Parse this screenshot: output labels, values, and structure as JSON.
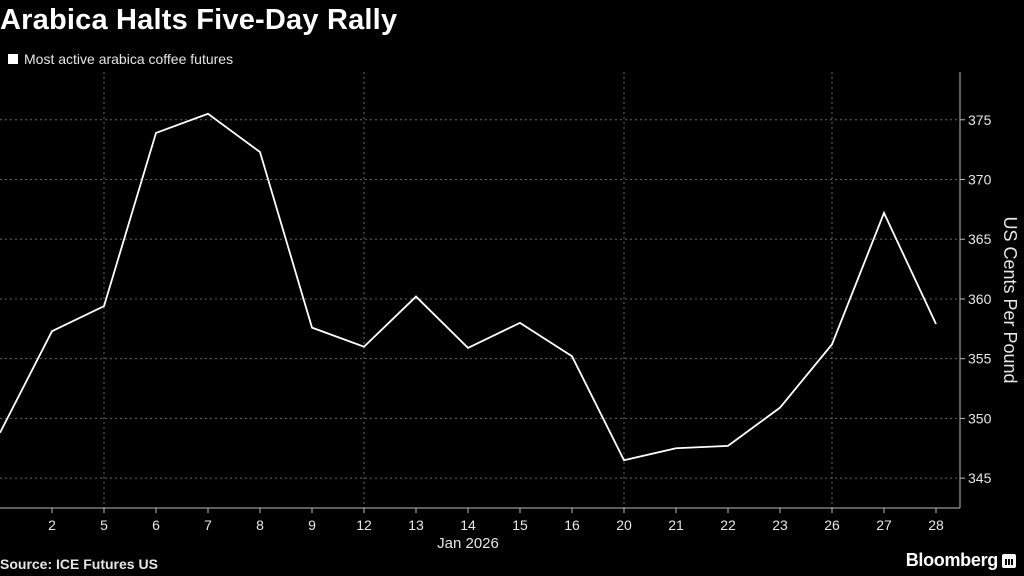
{
  "header": {
    "title": "Arabica Halts Five-Day Rally",
    "legend_label": "Most active arabica coffee futures"
  },
  "footer": {
    "source": "Source: ICE Futures US",
    "brand": "Bloomberg"
  },
  "colors": {
    "background": "#000000",
    "line": "#ffffff",
    "grid": "#666666",
    "text": "#e6e6e6"
  },
  "chart_data": {
    "type": "line",
    "title": "Arabica Halts Five-Day Rally",
    "xlabel": "Jan 2026",
    "ylabel": "US Cents Per Pound",
    "ylim": [
      342.5,
      379
    ],
    "yticks": [
      345,
      350,
      355,
      360,
      365,
      370,
      375
    ],
    "grid": true,
    "legend_placement": "top-left",
    "x_leading_point": "Dec 31, 2025",
    "categories": [
      "2",
      "5",
      "6",
      "7",
      "8",
      "9",
      "12",
      "13",
      "14",
      "15",
      "16",
      "20",
      "21",
      "22",
      "23",
      "26",
      "27",
      "28"
    ],
    "series": [
      {
        "name": "Most active arabica coffee futures",
        "values": [
          357.3,
          359.4,
          373.9,
          375.5,
          372.3,
          357.6,
          356.0,
          360.2,
          355.9,
          358.0,
          355.2,
          346.5,
          347.5,
          347.7,
          350.9,
          356.2,
          367.2,
          357.9
        ],
        "leading_value": 348.8
      }
    ]
  }
}
